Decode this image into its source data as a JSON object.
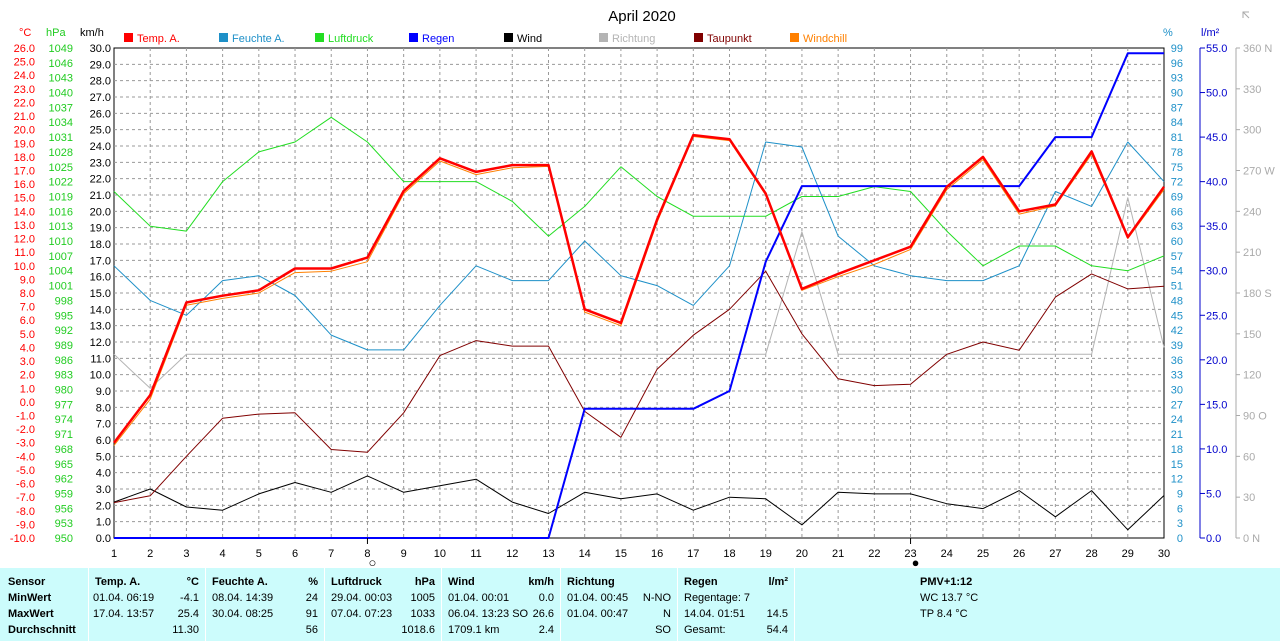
{
  "chart_data": {
    "type": "line",
    "title": "April 2020",
    "x": [
      1,
      2,
      3,
      4,
      5,
      6,
      7,
      8,
      9,
      10,
      11,
      12,
      13,
      14,
      15,
      16,
      17,
      18,
      19,
      20,
      21,
      22,
      23,
      24,
      25,
      26,
      27,
      28,
      29,
      30
    ],
    "axes": {
      "temp": {
        "unit": "°C",
        "min": -10,
        "max": 26,
        "step": 1
      },
      "pressure": {
        "unit": "hPa",
        "min": 950,
        "max": 1049,
        "step": 3
      },
      "wind": {
        "unit": "km/h",
        "min": 0,
        "max": 30,
        "step": 1
      },
      "humidity": {
        "unit": "%",
        "min": 0,
        "max": 99,
        "step": 3
      },
      "rain": {
        "unit": "l/m²",
        "min": 0,
        "max": 55,
        "step": 5
      },
      "direction": {
        "unit": "",
        "min": 0,
        "max": 360,
        "step": 30,
        "labels": {
          "0": "0 N",
          "90": "90 O",
          "180": "180 S",
          "270": "270 W",
          "360": "360 N"
        }
      }
    },
    "series": [
      {
        "name": "Temp. A.",
        "color": "#ff0000",
        "axis": "temp",
        "width": 2.5,
        "values": [
          -3.0,
          0.5,
          7.3,
          7.8,
          8.2,
          9.8,
          9.8,
          10.6,
          15.5,
          17.9,
          16.9,
          17.4,
          17.4,
          6.8,
          5.8,
          13.4,
          19.6,
          19.3,
          15.3,
          8.3,
          9.4,
          10.4,
          11.4,
          15.8,
          18.0,
          14.0,
          14.5,
          18.4,
          12.1,
          15.8
        ]
      },
      {
        "name": "Feuchte A.",
        "color": "#1e90c8",
        "axis": "humidity",
        "values": [
          55,
          48,
          45,
          52,
          53,
          49,
          41,
          38,
          38,
          47,
          55,
          52,
          52,
          60,
          53,
          51,
          47,
          55,
          80,
          79,
          61,
          55,
          53,
          52,
          52,
          55,
          70,
          67,
          80,
          72
        ]
      },
      {
        "name": "Luftdruck",
        "color": "#22dd22",
        "axis": "pressure",
        "values": [
          1020,
          1013,
          1012,
          1022,
          1028,
          1030,
          1035,
          1030,
          1022,
          1022,
          1022,
          1018,
          1011,
          1017,
          1025,
          1019,
          1015,
          1015,
          1015,
          1019,
          1019,
          1021,
          1020,
          1012,
          1005,
          1009,
          1009,
          1005,
          1004,
          1007
        ]
      },
      {
        "name": "Regen",
        "color": "#0000ff",
        "axis": "rain",
        "width": 2,
        "values": [
          0,
          0,
          0,
          0,
          0,
          0,
          0,
          0,
          0,
          0,
          0,
          0,
          0,
          14.5,
          14.5,
          14.5,
          14.5,
          16.5,
          31,
          39.5,
          39.5,
          39.5,
          39.5,
          39.5,
          39.5,
          39.5,
          45,
          45,
          54.4,
          54.4
        ]
      },
      {
        "name": "Wind",
        "color": "#000000",
        "axis": "wind",
        "values": [
          2.2,
          3.0,
          1.9,
          1.7,
          2.7,
          3.4,
          2.8,
          3.8,
          2.8,
          3.2,
          3.6,
          2.2,
          1.5,
          2.8,
          2.4,
          2.7,
          1.7,
          2.5,
          2.4,
          0.8,
          2.8,
          2.7,
          2.7,
          2.1,
          1.8,
          2.9,
          1.3,
          2.9,
          0.5,
          2.6
        ]
      },
      {
        "name": "Richtung",
        "color": "#b4b4b4",
        "axis": "direction",
        "values": [
          135,
          110,
          135,
          135,
          135,
          135,
          135,
          135,
          135,
          135,
          135,
          135,
          135,
          135,
          135,
          135,
          135,
          135,
          135,
          225,
          135,
          135,
          135,
          135,
          135,
          135,
          135,
          135,
          250,
          140
        ]
      },
      {
        "name": "Taupunkt",
        "color": "#800000",
        "axis": "temp",
        "values": [
          -7.4,
          -6.9,
          -4.0,
          -1.2,
          -0.9,
          -0.8,
          -3.5,
          -3.7,
          -0.8,
          3.4,
          4.5,
          4.1,
          4.1,
          -0.7,
          -2.6,
          2.4,
          4.9,
          6.8,
          9.6,
          5.0,
          1.7,
          1.2,
          1.3,
          3.5,
          4.4,
          3.8,
          7.7,
          9.4,
          8.3,
          8.5
        ]
      },
      {
        "name": "Windchill",
        "color": "#ff8000",
        "axis": "temp",
        "values": [
          -3.2,
          0.2,
          7.1,
          7.6,
          8.0,
          9.5,
          9.6,
          10.3,
          15.3,
          17.7,
          16.7,
          17.2,
          17.3,
          6.6,
          5.6,
          13.2,
          19.5,
          19.2,
          15.2,
          8.2,
          9.2,
          10.1,
          11.2,
          15.6,
          17.8,
          13.8,
          14.4,
          18.2,
          12.0,
          15.6
        ]
      }
    ],
    "markers": [
      {
        "day": 8,
        "symbol": "○"
      },
      {
        "day": 23,
        "symbol": "●"
      }
    ],
    "grid": true
  },
  "stats": {
    "sensor": {
      "title": "Sensor",
      "rows": [
        "MinWert",
        "MaxWert",
        "Durchschnitt"
      ]
    },
    "temp": {
      "title": "Temp. A.",
      "unit": "°C",
      "min_date": "01.04.  06:19",
      "min_val": "-4.1",
      "max_date": "17.04.  13:57",
      "max_val": "25.4",
      "avg": "11.30"
    },
    "humidity": {
      "title": "Feuchte A.",
      "unit": "%",
      "min_date": "08.04.  14:39",
      "min_val": "24",
      "max_date": "30.04.  08:25",
      "max_val": "91",
      "avg": "56"
    },
    "pressure": {
      "title": "Luftdruck",
      "unit": "hPa",
      "min_date": "29.04.  00:03",
      "min_val": "1005",
      "max_date": "07.04.  07:23",
      "max_val": "1033",
      "avg": "1018.6"
    },
    "wind": {
      "title": "Wind",
      "unit": "km/h",
      "min_date": "01.04.  00:01",
      "min_val": "0.0",
      "max_date": "06.04.  13:23 SO",
      "max_val": "26.6",
      "avg_left": "1709.1 km",
      "avg": "2.4"
    },
    "direction": {
      "title": "Richtung",
      "min_date": "01.04.  00:45",
      "min_val": "N-NO",
      "max_date": "01.04.  00:47",
      "max_val": "N",
      "avg": "SO"
    },
    "rain": {
      "title": "Regen",
      "unit": "l/m²",
      "row1": "Regentage: 7",
      "row2_left": "14.04.  01:51",
      "row2_val": "14.5",
      "row3_left": "Gesamt:",
      "row3_val": "54.4"
    },
    "pmv": {
      "title": "PMV+1:12",
      "wc": "WC 13.7 °C",
      "tp": "TP 8.4 °C"
    }
  }
}
